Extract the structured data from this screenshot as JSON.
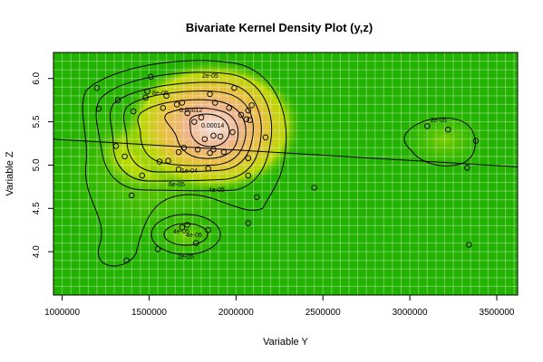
{
  "chart_data": {
    "type": "scatter",
    "title": "Bivariate Kernel Density Plot (y,z)",
    "xlabel": "Variable Y",
    "ylabel": "Variable Z",
    "xlim": [
      950000,
      3620000
    ],
    "ylim": [
      3.5,
      6.3
    ],
    "x_ticks": [
      1000000,
      1500000,
      2000000,
      2500000,
      3000000,
      3500000
    ],
    "x_tick_labels": [
      "1000000",
      "1500000",
      "2000000",
      "2500000",
      "3000000",
      "3500000"
    ],
    "y_ticks": [
      4.0,
      4.5,
      5.0,
      5.5,
      6.0
    ],
    "y_tick_labels": [
      "4.0",
      "4.5",
      "5.0",
      "5.5",
      "6.0"
    ],
    "grid": true,
    "background_colors": {
      "low": "#22b300",
      "mid": "#e5e500",
      "high": "#eaa050",
      "peak": "#f0d0c0"
    },
    "regression_line": {
      "x": [
        950000,
        3620000
      ],
      "y": [
        5.3,
        4.98
      ]
    },
    "contour_labels": [
      "2e-05",
      "8e-05",
      "0.00012",
      "0.00014",
      "1e-04",
      "6e-05",
      "4e-05",
      "2e-05",
      "2e-05",
      "4e-05",
      "4e-05"
    ],
    "density_peaks": [
      {
        "x": 1820000,
        "y": 5.45,
        "level": 0.00014
      },
      {
        "x": 1750000,
        "y": 4.25,
        "level": 4e-05
      },
      {
        "x": 3230000,
        "y": 5.38,
        "level": 2e-05
      }
    ],
    "points": [
      [
        1200000,
        5.89
      ],
      [
        1510000,
        6.02
      ],
      [
        1210000,
        5.65
      ],
      [
        1320000,
        5.75
      ],
      [
        1410000,
        5.62
      ],
      [
        1490000,
        5.85
      ],
      [
        1480000,
        5.78
      ],
      [
        1600000,
        5.8
      ],
      [
        1660000,
        5.7
      ],
      [
        1690000,
        5.72
      ],
      [
        1720000,
        5.6
      ],
      [
        1760000,
        5.5
      ],
      [
        1800000,
        5.55
      ],
      [
        1850000,
        5.82
      ],
      [
        1880000,
        5.72
      ],
      [
        1960000,
        5.66
      ],
      [
        1990000,
        5.89
      ],
      [
        2030000,
        5.58
      ],
      [
        2060000,
        5.53
      ],
      [
        2080000,
        5.52
      ],
      [
        2090000,
        5.69
      ],
      [
        2070000,
        5.63
      ],
      [
        1580000,
        5.66
      ],
      [
        1870000,
        5.34
      ],
      [
        1910000,
        5.33
      ],
      [
        1980000,
        5.38
      ],
      [
        2170000,
        5.32
      ],
      [
        1820000,
        5.3
      ],
      [
        1310000,
        5.22
      ],
      [
        1360000,
        5.1
      ],
      [
        1560000,
        5.04
      ],
      [
        1610000,
        5.05
      ],
      [
        1670000,
        5.15
      ],
      [
        1700000,
        5.2
      ],
      [
        1780000,
        5.18
      ],
      [
        1850000,
        5.14
      ],
      [
        1930000,
        5.15
      ],
      [
        1870000,
        5.18
      ],
      [
        2070000,
        5.08
      ],
      [
        1840000,
        4.96
      ],
      [
        1670000,
        4.95
      ],
      [
        1460000,
        4.88
      ],
      [
        2070000,
        4.88
      ],
      [
        1400000,
        4.65
      ],
      [
        2120000,
        4.63
      ],
      [
        2450000,
        4.74
      ],
      [
        1690000,
        4.28
      ],
      [
        1720000,
        4.31
      ],
      [
        1840000,
        4.25
      ],
      [
        1770000,
        4.1
      ],
      [
        2070000,
        4.33
      ],
      [
        1550000,
        4.03
      ],
      [
        1370000,
        3.9
      ],
      [
        3100000,
        5.45
      ],
      [
        3220000,
        5.41
      ],
      [
        3380000,
        5.28
      ],
      [
        3330000,
        4.97
      ],
      [
        3340000,
        4.08
      ]
    ]
  }
}
